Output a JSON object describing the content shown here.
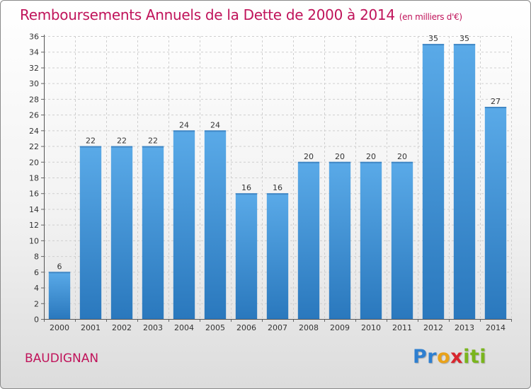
{
  "chart_data": {
    "type": "bar",
    "title": "Remboursements Annuels de la Dette de 2000 à 2014",
    "subtitle": "(en milliers d'€)",
    "categories": [
      "2000",
      "2001",
      "2002",
      "2003",
      "2004",
      "2005",
      "2006",
      "2007",
      "2008",
      "2009",
      "2010",
      "2011",
      "2012",
      "2013",
      "2014"
    ],
    "values": [
      6,
      22,
      22,
      22,
      24,
      24,
      16,
      16,
      20,
      20,
      20,
      20,
      35,
      35,
      27
    ],
    "ylim": [
      0,
      36
    ],
    "ytick_step": 2,
    "grid": true,
    "bar_color_top": "#5aaae8",
    "bar_color_bottom": "#2a78bd"
  },
  "commune": "BAUDIGNAN",
  "logo": {
    "p1": "Pr",
    "p2": "o",
    "p3": "x",
    "p4": "iti"
  }
}
